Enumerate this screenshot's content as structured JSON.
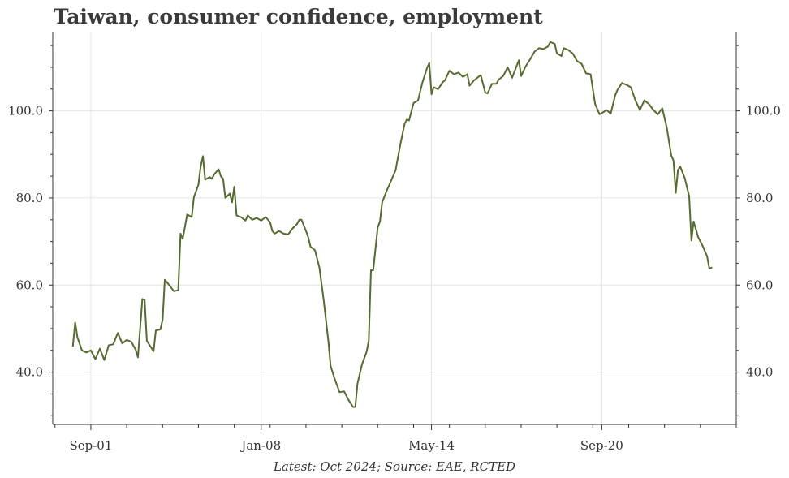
{
  "chart_data": {
    "type": "line",
    "title": "Taiwan, consumer confidence, employment",
    "xlabel": "",
    "ylabel": "",
    "x_tick_labels": [
      "Sep-01",
      "Jan-08",
      "May-14",
      "Sep-20"
    ],
    "x_tick_positions": [
      "2001-09",
      "2008-01",
      "2014-05",
      "2020-09"
    ],
    "y_tick_labels": [
      "40.0",
      "60.0",
      "80.0",
      "100.0"
    ],
    "y_ticks": [
      40,
      60,
      80,
      100
    ],
    "ylim": [
      28,
      118
    ],
    "xlim": [
      "2000-04",
      "2025-09"
    ],
    "grid": true,
    "legend": "none",
    "y_axis": "both",
    "line_color": "#556b2f",
    "series": [
      {
        "points": [
          [
            "2001-01",
            46.0
          ],
          [
            "2001-02",
            51.4
          ],
          [
            "2001-03",
            48.0
          ],
          [
            "2001-05",
            45.0
          ],
          [
            "2001-07",
            44.5
          ],
          [
            "2001-09",
            45.0
          ],
          [
            "2001-10",
            44.0
          ],
          [
            "2001-11",
            43.0
          ],
          [
            "2002-01",
            45.4
          ],
          [
            "2002-03",
            42.8
          ],
          [
            "2002-05",
            46.2
          ],
          [
            "2002-07",
            46.4
          ],
          [
            "2002-09",
            49.0
          ],
          [
            "2002-11",
            46.6
          ],
          [
            "2003-01",
            47.4
          ],
          [
            "2003-03",
            47.0
          ],
          [
            "2003-05",
            45.2
          ],
          [
            "2003-06",
            43.4
          ],
          [
            "2003-08",
            56.8
          ],
          [
            "2003-09",
            56.6
          ],
          [
            "2003-10",
            47.2
          ],
          [
            "2003-11",
            46.4
          ],
          [
            "2004-01",
            44.8
          ],
          [
            "2004-02",
            49.6
          ],
          [
            "2004-04",
            49.8
          ],
          [
            "2004-05",
            52.0
          ],
          [
            "2004-06",
            61.2
          ],
          [
            "2004-08",
            60.0
          ],
          [
            "2004-10",
            58.6
          ],
          [
            "2004-12",
            58.8
          ],
          [
            "2005-01",
            71.8
          ],
          [
            "2005-02",
            70.6
          ],
          [
            "2005-04",
            76.2
          ],
          [
            "2005-06",
            75.6
          ],
          [
            "2005-07",
            80.2
          ],
          [
            "2005-09",
            83.0
          ],
          [
            "2005-10",
            87.2
          ],
          [
            "2005-11",
            89.6
          ],
          [
            "2005-12",
            84.2
          ],
          [
            "2006-02",
            84.8
          ],
          [
            "2006-03",
            84.4
          ],
          [
            "2006-04",
            85.4
          ],
          [
            "2006-06",
            86.6
          ],
          [
            "2006-07",
            85.0
          ],
          [
            "2006-08",
            84.4
          ],
          [
            "2006-09",
            80.0
          ],
          [
            "2006-11",
            81.0
          ],
          [
            "2006-12",
            79.0
          ],
          [
            "2007-01",
            82.6
          ],
          [
            "2007-02",
            76.0
          ],
          [
            "2007-04",
            75.6
          ],
          [
            "2007-06",
            74.8
          ],
          [
            "2007-07",
            76.0
          ],
          [
            "2007-09",
            75.0
          ],
          [
            "2007-11",
            75.4
          ],
          [
            "2008-01",
            74.8
          ],
          [
            "2008-03",
            75.6
          ],
          [
            "2008-05",
            74.4
          ],
          [
            "2008-06",
            72.4
          ],
          [
            "2008-07",
            71.8
          ],
          [
            "2008-09",
            72.4
          ],
          [
            "2008-11",
            71.8
          ],
          [
            "2009-01",
            71.6
          ],
          [
            "2009-03",
            73.0
          ],
          [
            "2009-05",
            74.0
          ],
          [
            "2009-06",
            75.0
          ],
          [
            "2009-07",
            75.0
          ],
          [
            "2009-09",
            72.4
          ],
          [
            "2009-10",
            71.0
          ],
          [
            "2009-11",
            68.8
          ],
          [
            "2010-01",
            68.0
          ],
          [
            "2010-03",
            64.0
          ],
          [
            "2010-05",
            56.2
          ],
          [
            "2010-07",
            47.0
          ],
          [
            "2010-08",
            41.4
          ],
          [
            "2010-10",
            38.2
          ],
          [
            "2010-12",
            35.4
          ],
          [
            "2011-02",
            35.6
          ],
          [
            "2011-04",
            33.6
          ],
          [
            "2011-06",
            32.0
          ],
          [
            "2011-07",
            32.0
          ],
          [
            "2011-08",
            37.4
          ],
          [
            "2011-10",
            41.8
          ],
          [
            "2011-12",
            44.6
          ],
          [
            "2012-01",
            47.2
          ],
          [
            "2012-02",
            63.4
          ],
          [
            "2012-03",
            63.4
          ],
          [
            "2012-05",
            73.2
          ],
          [
            "2012-06",
            74.6
          ],
          [
            "2012-07",
            79.0
          ],
          [
            "2012-09",
            81.6
          ],
          [
            "2012-11",
            84.0
          ],
          [
            "2013-01",
            86.4
          ],
          [
            "2013-03",
            92.0
          ],
          [
            "2013-05",
            97.0
          ],
          [
            "2013-06",
            98.0
          ],
          [
            "2013-07",
            97.8
          ],
          [
            "2013-09",
            101.8
          ],
          [
            "2013-11",
            102.4
          ],
          [
            "2014-01",
            106.6
          ],
          [
            "2014-03",
            109.8
          ],
          [
            "2014-04",
            111.0
          ],
          [
            "2014-05",
            103.8
          ],
          [
            "2014-06",
            105.4
          ],
          [
            "2014-08",
            105.0
          ],
          [
            "2014-10",
            106.6
          ],
          [
            "2014-11",
            107.0
          ],
          [
            "2015-01",
            109.2
          ],
          [
            "2015-03",
            108.4
          ],
          [
            "2015-05",
            108.8
          ],
          [
            "2015-07",
            107.8
          ],
          [
            "2015-09",
            108.4
          ],
          [
            "2015-10",
            105.8
          ],
          [
            "2015-12",
            107.0
          ],
          [
            "2016-02",
            107.8
          ],
          [
            "2016-03",
            108.2
          ],
          [
            "2016-05",
            104.2
          ],
          [
            "2016-06",
            104.0
          ],
          [
            "2016-08",
            106.2
          ],
          [
            "2016-10",
            106.2
          ],
          [
            "2016-11",
            107.2
          ],
          [
            "2017-01",
            108.0
          ],
          [
            "2017-03",
            110.0
          ],
          [
            "2017-05",
            107.6
          ],
          [
            "2017-06",
            109.0
          ],
          [
            "2017-08",
            111.6
          ],
          [
            "2017-09",
            108.0
          ],
          [
            "2017-11",
            110.2
          ],
          [
            "2018-01",
            111.8
          ],
          [
            "2018-03",
            113.6
          ],
          [
            "2018-05",
            114.4
          ],
          [
            "2018-07",
            114.2
          ],
          [
            "2018-09",
            114.8
          ],
          [
            "2018-10",
            115.8
          ],
          [
            "2018-12",
            115.4
          ],
          [
            "2019-01",
            113.2
          ],
          [
            "2019-03",
            112.6
          ],
          [
            "2019-04",
            114.4
          ],
          [
            "2019-06",
            114.0
          ],
          [
            "2019-08",
            113.2
          ],
          [
            "2019-10",
            111.4
          ],
          [
            "2019-12",
            110.8
          ],
          [
            "2020-02",
            108.6
          ],
          [
            "2020-04",
            108.4
          ],
          [
            "2020-06",
            101.6
          ],
          [
            "2020-08",
            99.2
          ],
          [
            "2020-10",
            99.8
          ],
          [
            "2020-11",
            100.2
          ],
          [
            "2021-01",
            99.4
          ],
          [
            "2021-03",
            103.6
          ],
          [
            "2021-04",
            104.8
          ],
          [
            "2021-06",
            106.4
          ],
          [
            "2021-08",
            106.0
          ],
          [
            "2021-10",
            105.4
          ],
          [
            "2021-12",
            102.4
          ],
          [
            "2022-02",
            100.2
          ],
          [
            "2022-04",
            102.4
          ],
          [
            "2022-06",
            101.6
          ],
          [
            "2022-08",
            100.2
          ],
          [
            "2022-10",
            99.2
          ],
          [
            "2022-12",
            100.6
          ],
          [
            "2023-02",
            96.2
          ],
          [
            "2023-04",
            89.8
          ],
          [
            "2023-05",
            88.6
          ],
          [
            "2023-06",
            81.2
          ],
          [
            "2023-07",
            86.4
          ],
          [
            "2023-08",
            87.2
          ],
          [
            "2023-10",
            84.6
          ],
          [
            "2023-12",
            80.4
          ],
          [
            "2024-01",
            70.2
          ],
          [
            "2024-02",
            74.6
          ],
          [
            "2024-04",
            71.0
          ],
          [
            "2024-06",
            69.0
          ],
          [
            "2024-08",
            66.6
          ],
          [
            "2024-09",
            63.8
          ],
          [
            "2024-10",
            64.0
          ]
        ]
      }
    ],
    "source_note": "Latest: Oct 2024; Source: EAE, RCTED"
  }
}
